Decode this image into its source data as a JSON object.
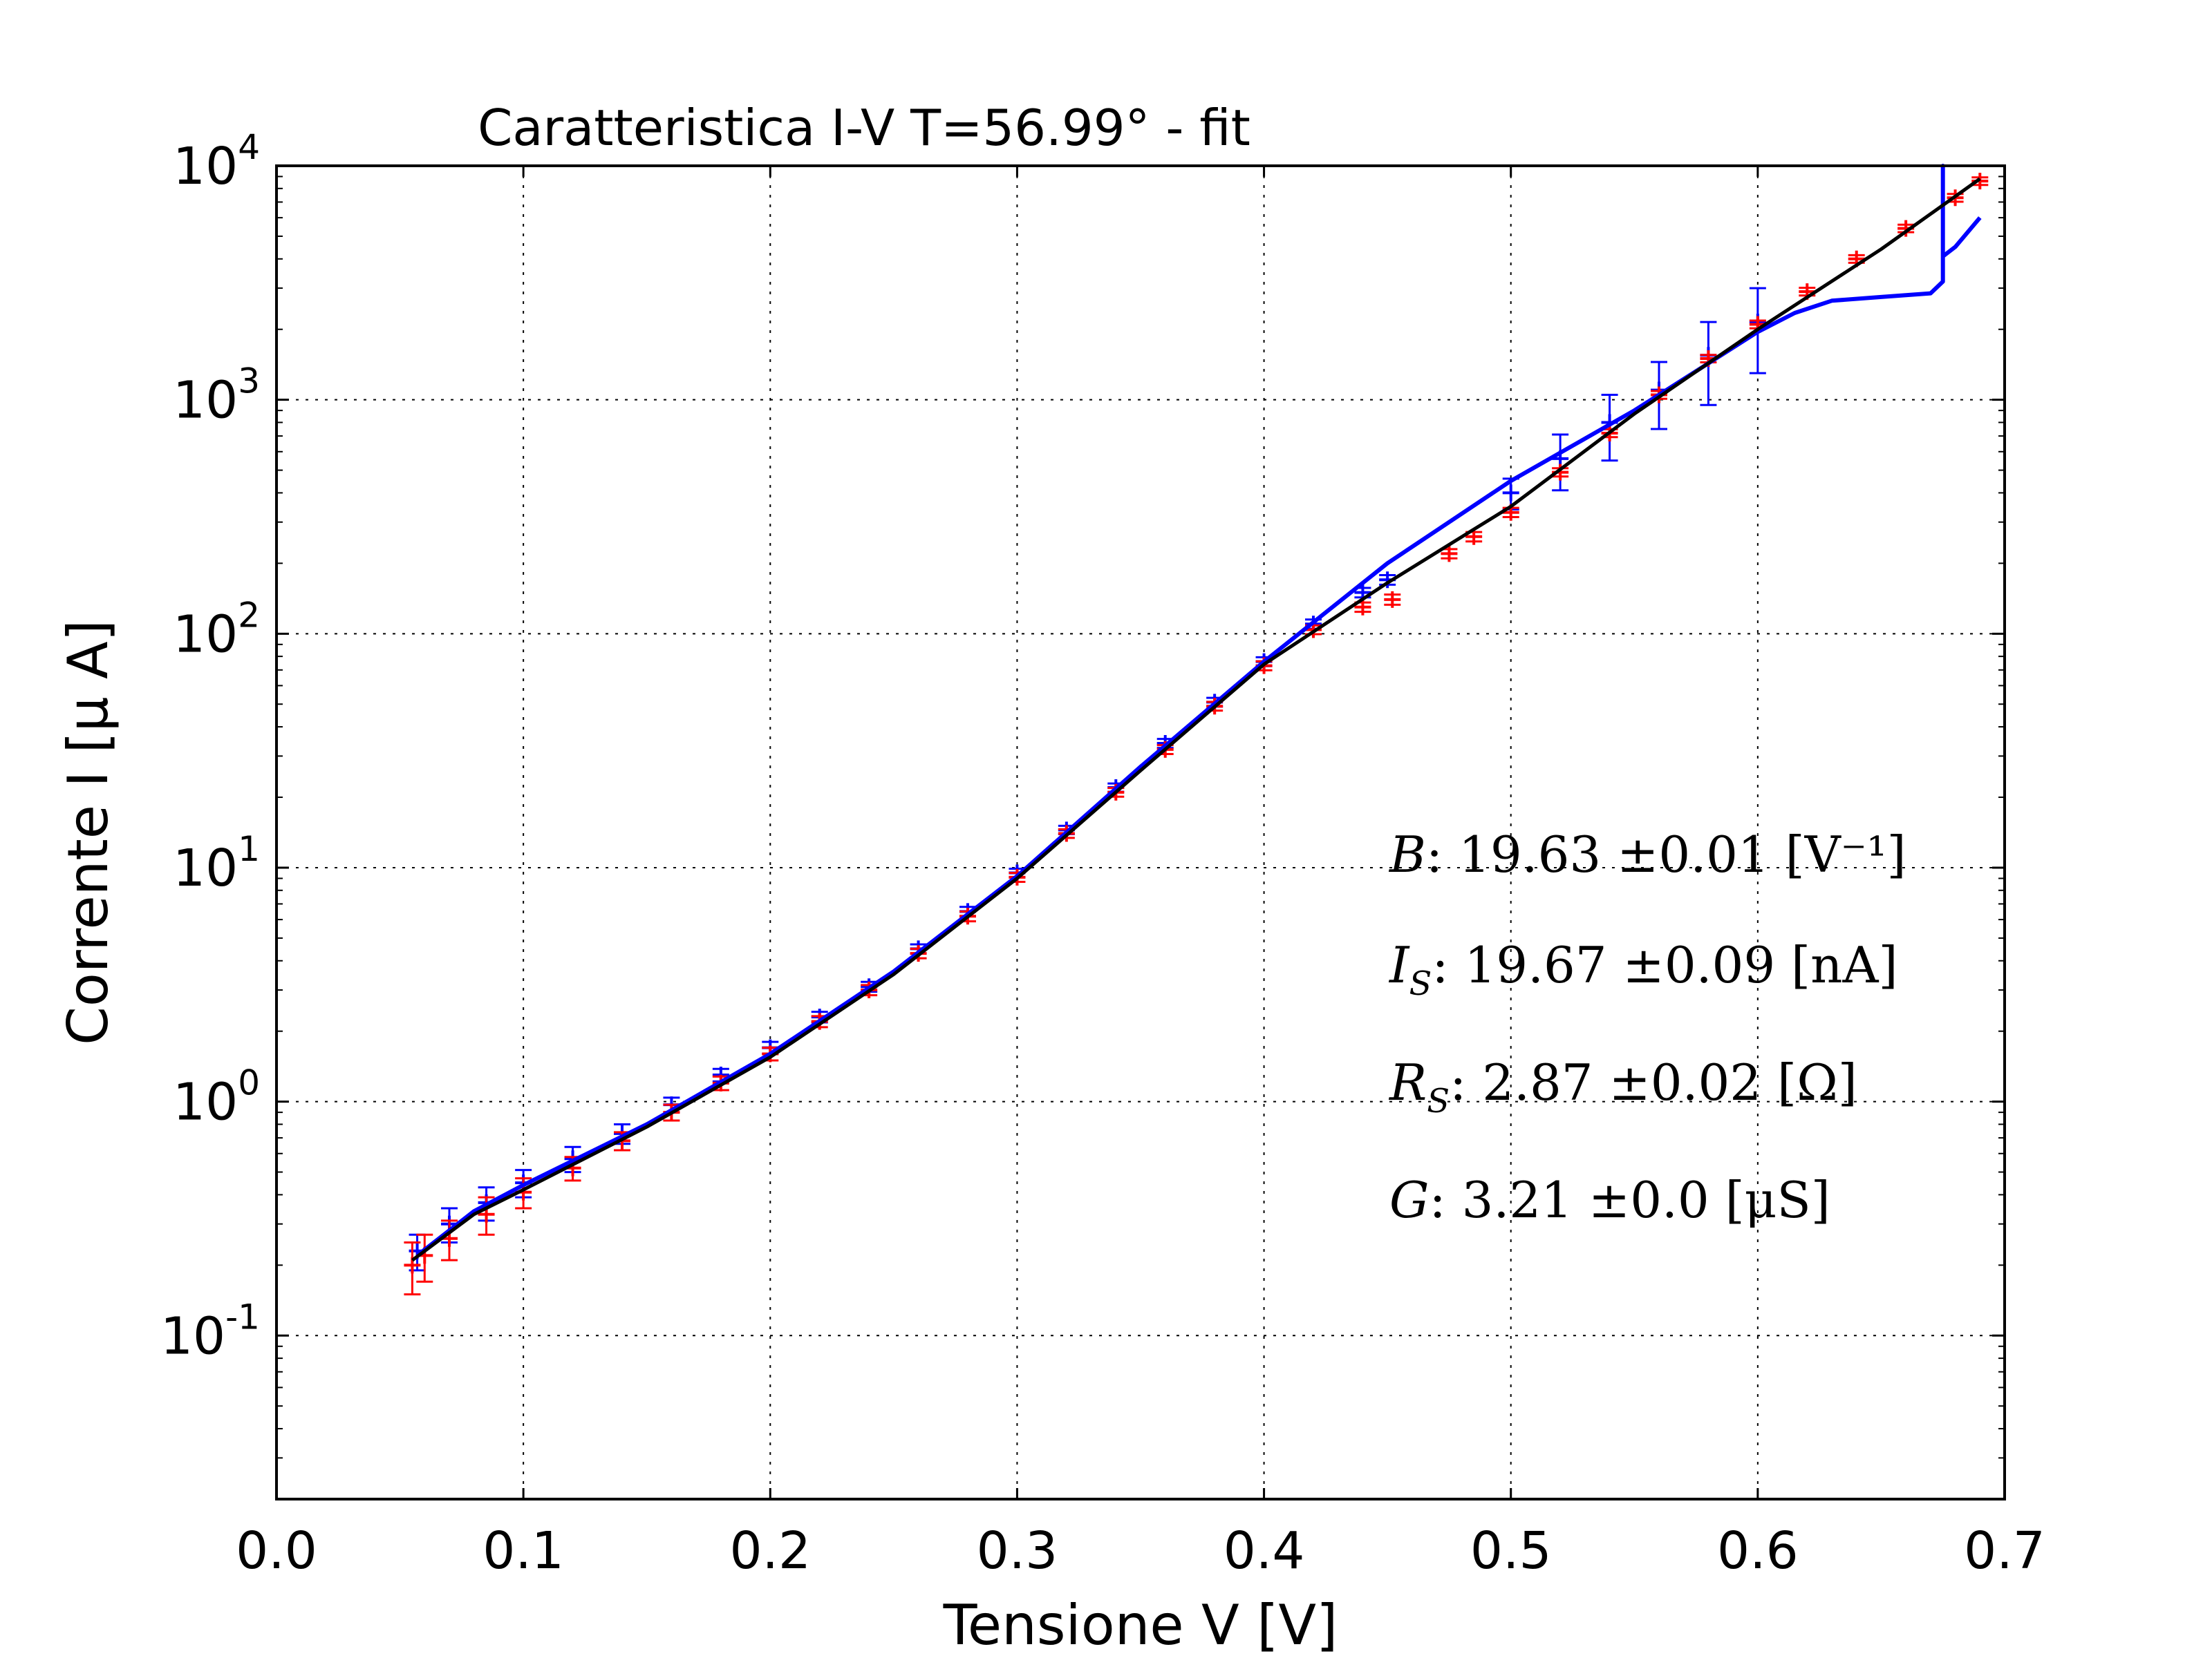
{
  "chart_data": {
    "type": "scatter",
    "title": "Caratteristica I-V T=56.99° - fit",
    "xlabel": "Tensione V [V]",
    "ylabel": "Corrente I [μ A]",
    "xlim": [
      0.0,
      0.7
    ],
    "ylim": [
      0.02,
      10000
    ],
    "yscale": "log",
    "grid": true,
    "x_ticks": [
      "0.0",
      "0.1",
      "0.2",
      "0.3",
      "0.4",
      "0.5",
      "0.6",
      "0.7"
    ],
    "y_ticks": [
      {
        "value": 0.1,
        "base": "10",
        "exp": "-1"
      },
      {
        "value": 1,
        "base": "10",
        "exp": "0"
      },
      {
        "value": 10,
        "base": "10",
        "exp": "1"
      },
      {
        "value": 100,
        "base": "10",
        "exp": "2"
      },
      {
        "value": 1000,
        "base": "10",
        "exp": "3"
      },
      {
        "value": 10000,
        "base": "10",
        "exp": "4"
      }
    ],
    "colors": {
      "series_a": "#0000ff",
      "series_b": "#ff0000",
      "fit": "#000000"
    },
    "series": [
      {
        "color": "#0000ff",
        "marker": "+",
        "x": [
          0.057,
          0.07,
          0.085,
          0.1,
          0.12,
          0.14,
          0.16,
          0.18,
          0.2,
          0.22,
          0.24,
          0.26,
          0.28,
          0.3,
          0.32,
          0.34,
          0.36,
          0.38,
          0.4,
          0.42,
          0.44,
          0.45,
          0.5,
          0.52,
          0.54,
          0.56,
          0.58,
          0.6
        ],
        "y": [
          0.23,
          0.3,
          0.37,
          0.45,
          0.57,
          0.73,
          0.97,
          1.3,
          1.7,
          2.3,
          3.1,
          4.5,
          6.5,
          9.5,
          14.5,
          22,
          34,
          51,
          76,
          110,
          150,
          170,
          400,
          560,
          800,
          1100,
          1550,
          2150
        ],
        "err_low": [
          0.04,
          0.05,
          0.06,
          0.06,
          0.07,
          0.07,
          0.07,
          0.08,
          0.1,
          0.12,
          0.15,
          0.2,
          0.3,
          0.4,
          0.6,
          0.9,
          1.5,
          2.2,
          3.3,
          5,
          7,
          8,
          60,
          150,
          250,
          350,
          600,
          850
        ],
        "err_high": [
          0.04,
          0.05,
          0.06,
          0.06,
          0.07,
          0.07,
          0.07,
          0.08,
          0.1,
          0.12,
          0.15,
          0.2,
          0.3,
          0.4,
          0.6,
          0.9,
          1.5,
          2.2,
          3.3,
          5,
          7,
          8,
          60,
          150,
          250,
          350,
          600,
          850
        ]
      },
      {
        "color": "#ff0000",
        "marker": "+",
        "x": [
          0.055,
          0.06,
          0.07,
          0.085,
          0.1,
          0.12,
          0.14,
          0.16,
          0.18,
          0.2,
          0.22,
          0.24,
          0.26,
          0.28,
          0.3,
          0.32,
          0.34,
          0.36,
          0.38,
          0.4,
          0.42,
          0.44,
          0.452,
          0.475,
          0.485,
          0.5,
          0.52,
          0.54,
          0.56,
          0.58,
          0.6,
          0.62,
          0.64,
          0.66,
          0.68,
          0.69
        ],
        "y": [
          0.2,
          0.22,
          0.26,
          0.33,
          0.41,
          0.52,
          0.68,
          0.9,
          1.2,
          1.6,
          2.2,
          3.0,
          4.3,
          6.2,
          9.1,
          14,
          21,
          32,
          49,
          73,
          104,
          130,
          140,
          220,
          260,
          330,
          490,
          720,
          1050,
          1500,
          2100,
          2900,
          4000,
          5400,
          7300,
          8600
        ],
        "err_low": [
          0.05,
          0.05,
          0.05,
          0.06,
          0.06,
          0.06,
          0.06,
          0.07,
          0.08,
          0.1,
          0.12,
          0.15,
          0.2,
          0.3,
          0.4,
          0.6,
          0.9,
          1.4,
          2.1,
          3.2,
          4.5,
          6,
          7,
          10,
          12,
          15,
          20,
          28,
          40,
          55,
          80,
          110,
          150,
          200,
          280,
          320
        ],
        "err_high": [
          0.05,
          0.05,
          0.05,
          0.06,
          0.06,
          0.06,
          0.06,
          0.07,
          0.08,
          0.1,
          0.12,
          0.15,
          0.2,
          0.3,
          0.4,
          0.6,
          0.9,
          1.4,
          2.1,
          3.2,
          4.5,
          6,
          7,
          10,
          12,
          15,
          20,
          28,
          40,
          55,
          80,
          110,
          150,
          200,
          280,
          320
        ]
      },
      {
        "color": "#0000ff",
        "marker": "line",
        "x": [
          0.057,
          0.08,
          0.1,
          0.15,
          0.2,
          0.25,
          0.3,
          0.35,
          0.4,
          0.45,
          0.5,
          0.55,
          0.6,
          0.615,
          0.63,
          0.65,
          0.67,
          0.675,
          0.675,
          0.675,
          0.68,
          0.69
        ],
        "y": [
          0.22,
          0.34,
          0.44,
          0.8,
          1.6,
          3.6,
          9.2,
          27,
          76,
          200,
          450,
          900,
          1950,
          2350,
          2650,
          2750,
          2850,
          3200,
          10000,
          4100,
          4500,
          6000
        ]
      },
      {
        "color": "#000000",
        "marker": "line",
        "x": [
          0.055,
          0.08,
          0.1,
          0.15,
          0.2,
          0.25,
          0.3,
          0.35,
          0.4,
          0.45,
          0.5,
          0.55,
          0.6,
          0.65,
          0.69
        ],
        "y": [
          0.21,
          0.33,
          0.42,
          0.78,
          1.55,
          3.5,
          9.0,
          26,
          74,
          165,
          350,
          870,
          2000,
          4400,
          8800
        ]
      }
    ],
    "annotations": [
      {
        "sym": "B",
        "sub": "",
        "sup": "",
        "text": ": 19.63 ±0.01 [V⁻¹]"
      },
      {
        "sym": "I",
        "sub": "S",
        "sup": "",
        "text": ": 19.67 ±0.09 [nA]"
      },
      {
        "sym": "R",
        "sub": "S",
        "sup": "",
        "text": ": 2.87 ±0.02 [Ω]"
      },
      {
        "sym": "G",
        "sub": "",
        "sup": "",
        "text": ": 3.21 ±0.0 [μS]"
      }
    ]
  }
}
